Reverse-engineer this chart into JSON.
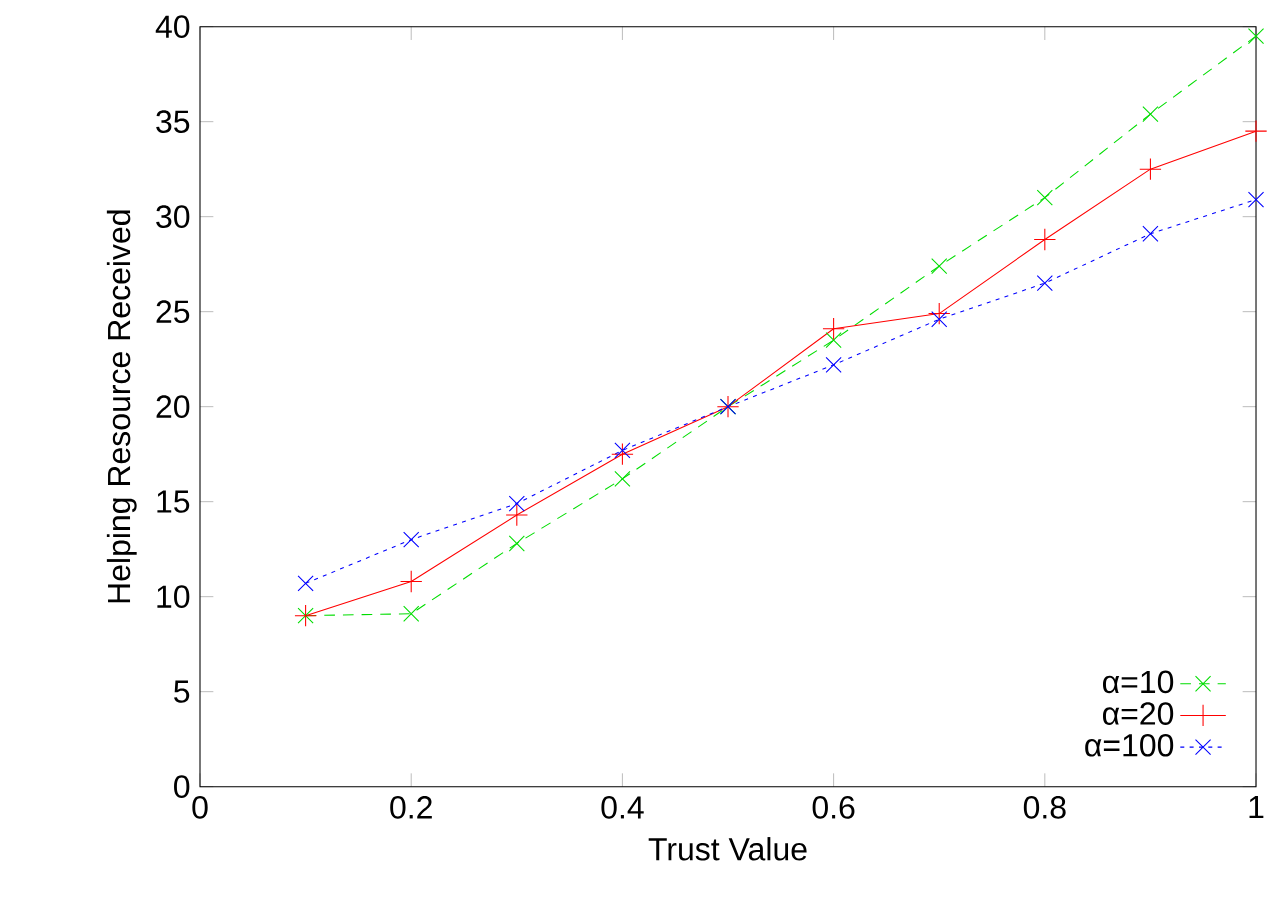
{
  "chart_data": {
    "type": "line",
    "xlabel": "Trust Value",
    "ylabel": "Helping Resource Received",
    "x": [
      0.1,
      0.2,
      0.3,
      0.4,
      0.5,
      0.6,
      0.7,
      0.8,
      0.9,
      1.0
    ],
    "series": [
      {
        "name": "α=10",
        "color": "#00dd00",
        "line_style": "dashed",
        "marker": "cross",
        "values": [
          9.0,
          9.1,
          12.8,
          16.2,
          20,
          23.5,
          27.4,
          31.0,
          35.4,
          39.5
        ]
      },
      {
        "name": "α=20",
        "color": "#ff0000",
        "line_style": "solid",
        "marker": "plus",
        "values": [
          9.0,
          10.8,
          14.3,
          17.5,
          20,
          24.1,
          24.9,
          28.8,
          32.5,
          34.5
        ]
      },
      {
        "name": "α=100",
        "color": "#0000ff",
        "line_style": "dotted",
        "marker": "cross",
        "values": [
          10.7,
          13.0,
          14.9,
          17.7,
          20,
          22.2,
          24.6,
          26.5,
          29.1,
          30.9
        ]
      }
    ],
    "xlim": [
      0,
      1
    ],
    "ylim": [
      0,
      40
    ],
    "xticks": [
      0,
      0.2,
      0.4,
      0.6,
      0.8,
      1
    ],
    "yticks": [
      0,
      5,
      10,
      15,
      20,
      25,
      30,
      35,
      40
    ],
    "grid": false,
    "legend": "bottom right"
  }
}
